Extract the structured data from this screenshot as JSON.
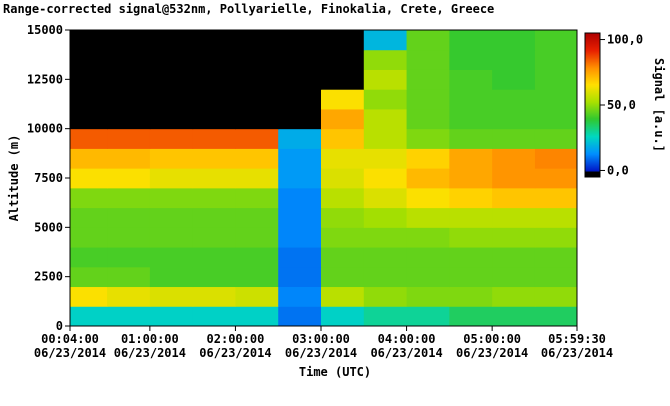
{
  "chart_data": {
    "type": "heatmap",
    "title": "Range-corrected signal@532nm, Pollyarielle, Finokalia, Crete, Greece",
    "xlabel": "Time (UTC)",
    "ylabel": "Altitude (m)",
    "colorbar_label": "Signal [a.u.]",
    "xlim": [
      4,
      359.5
    ],
    "xticks": [
      {
        "value": 4,
        "label": "00:04:00\n06/23/2014"
      },
      {
        "value": 60,
        "label": "01:00:00\n06/23/2014"
      },
      {
        "value": 120,
        "label": "02:00:00\n06/23/2014"
      },
      {
        "value": 180,
        "label": "03:00:00\n06/23/2014"
      },
      {
        "value": 240,
        "label": "04:00:00\n06/23/2014"
      },
      {
        "value": 300,
        "label": "05:00:00\n06/23/2014"
      },
      {
        "value": 359.5,
        "label": "05:59:30\n06/23/2014"
      }
    ],
    "ylim": [
      0,
      15000
    ],
    "yticks": [
      0,
      2500,
      5000,
      7500,
      10000,
      12500,
      15000
    ],
    "clim": [
      -5,
      105
    ],
    "cticks": [
      {
        "value": 0,
        "label": "0,0"
      },
      {
        "value": 50,
        "label": "50,0"
      },
      {
        "value": 100,
        "label": "100,0"
      }
    ],
    "colormap": [
      "#0018c8",
      "#0090ff",
      "#00d8c0",
      "#30c830",
      "#a8e000",
      "#ffe000",
      "#ff9000",
      "#e82000",
      "#b00000"
    ],
    "below_color": "#000000",
    "xbins": [
      0,
      30,
      60,
      90,
      120,
      150,
      180,
      210,
      240,
      270,
      300,
      330,
      360
    ],
    "ybins": [
      0,
      1000,
      2000,
      3000,
      4000,
      5000,
      6000,
      7000,
      8000,
      9000,
      10000,
      11000,
      12000,
      13000,
      14000,
      15000
    ],
    "z": [
      [
        25,
        25,
        25,
        25,
        25,
        10,
        25,
        30,
        30,
        35,
        35,
        35
      ],
      [
        65,
        62,
        60,
        60,
        58,
        12,
        55,
        50,
        48,
        48,
        50,
        50
      ],
      [
        45,
        45,
        42,
        42,
        42,
        10,
        45,
        45,
        45,
        45,
        45,
        45
      ],
      [
        42,
        42,
        42,
        42,
        42,
        10,
        45,
        45,
        45,
        45,
        45,
        45
      ],
      [
        45,
        45,
        45,
        45,
        45,
        12,
        48,
        48,
        48,
        50,
        50,
        50
      ],
      [
        45,
        45,
        45,
        45,
        45,
        12,
        50,
        52,
        55,
        55,
        55,
        55
      ],
      [
        48,
        48,
        48,
        48,
        48,
        12,
        55,
        60,
        65,
        68,
        70,
        70
      ],
      [
        65,
        65,
        62,
        62,
        62,
        15,
        60,
        65,
        72,
        75,
        78,
        78
      ],
      [
        72,
        72,
        70,
        70,
        70,
        15,
        62,
        62,
        68,
        75,
        78,
        80
      ],
      [
        85,
        85,
        85,
        85,
        85,
        18,
        70,
        55,
        48,
        45,
        45,
        45
      ],
      [
        -4,
        -4,
        -4,
        -4,
        -4,
        -6,
        75,
        55,
        45,
        42,
        42,
        42
      ],
      [
        -6,
        -6,
        -6,
        -6,
        -6,
        -6,
        65,
        50,
        45,
        42,
        42,
        42
      ],
      [
        -6,
        -6,
        -6,
        -6,
        -6,
        -6,
        -6,
        55,
        45,
        42,
        40,
        42
      ],
      [
        -6,
        -6,
        -6,
        -6,
        -6,
        -6,
        -6,
        50,
        45,
        40,
        40,
        42
      ],
      [
        -6,
        -6,
        -6,
        -6,
        -6,
        -6,
        -6,
        20,
        45,
        40,
        40,
        42
      ]
    ]
  }
}
